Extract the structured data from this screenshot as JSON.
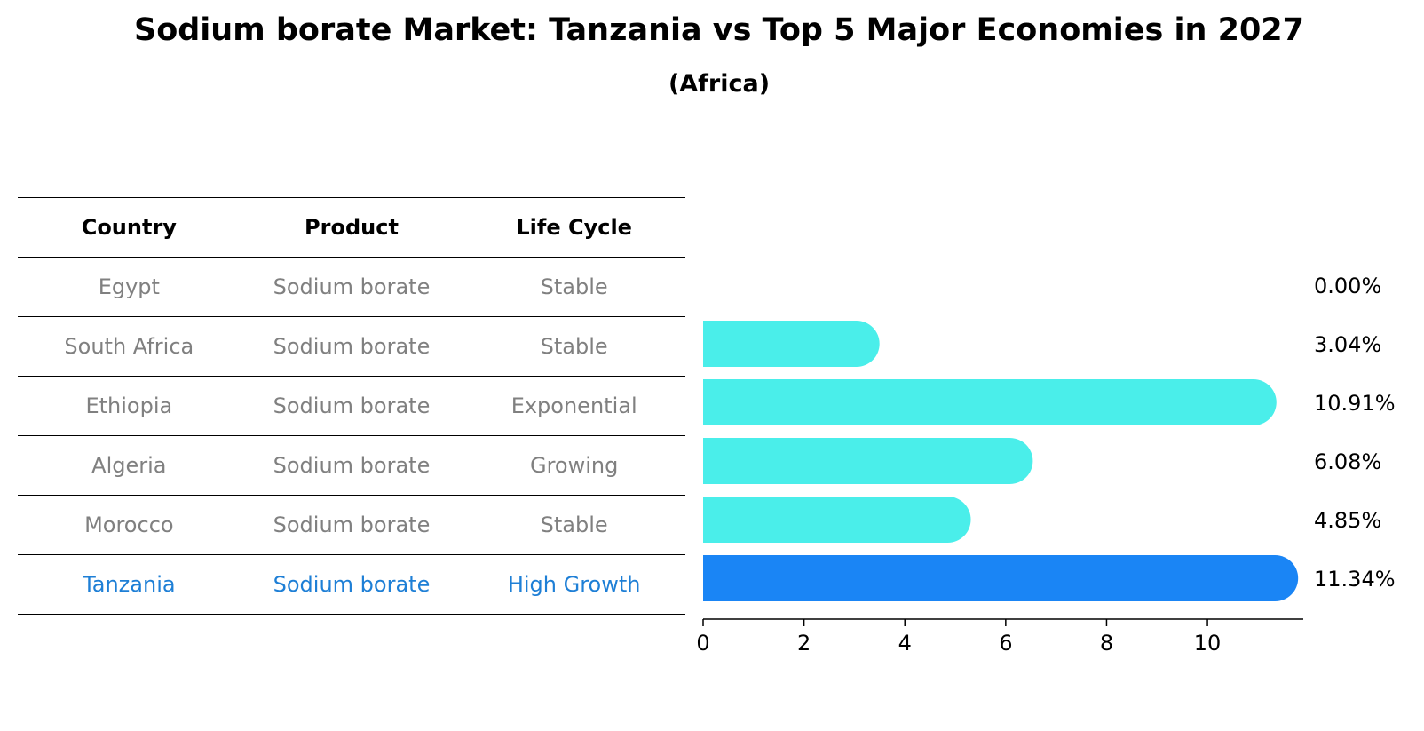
{
  "title": "Sodium borate Market: Tanzania vs Top 5 Major Economies in 2027",
  "subtitle": "(Africa)",
  "table": {
    "headers": [
      "Country",
      "Product",
      "Life Cycle"
    ],
    "rows": [
      {
        "country": "Egypt",
        "product": "Sodium borate",
        "life_cycle": "Stable"
      },
      {
        "country": "South Africa",
        "product": "Sodium borate",
        "life_cycle": "Stable"
      },
      {
        "country": "Ethiopia",
        "product": "Sodium borate",
        "life_cycle": "Exponential"
      },
      {
        "country": "Algeria",
        "product": "Sodium borate",
        "life_cycle": "Growing"
      },
      {
        "country": "Morocco",
        "product": "Sodium borate",
        "life_cycle": "Stable"
      },
      {
        "country": "Tanzania",
        "product": "Sodium borate",
        "life_cycle": "High Growth"
      }
    ]
  },
  "colors": {
    "bar": "#4aeeea",
    "highlight_bar": "#1a85f5",
    "highlight_text": "#1e7fd6",
    "muted_text": "#808080"
  },
  "chart_data": {
    "type": "bar",
    "orientation": "horizontal",
    "categories": [
      "Egypt",
      "South Africa",
      "Ethiopia",
      "Algeria",
      "Morocco",
      "Tanzania"
    ],
    "values": [
      0.0,
      3.04,
      10.91,
      6.08,
      4.85,
      11.34
    ],
    "value_labels": [
      "0.00%",
      "3.04%",
      "10.91%",
      "6.08%",
      "4.85%",
      "11.34%"
    ],
    "highlight": "Tanzania",
    "xticks": [
      0,
      2,
      4,
      6,
      8,
      10
    ],
    "xlim": [
      0,
      11.9
    ],
    "xlabel": "",
    "ylabel": "",
    "grid": false
  }
}
